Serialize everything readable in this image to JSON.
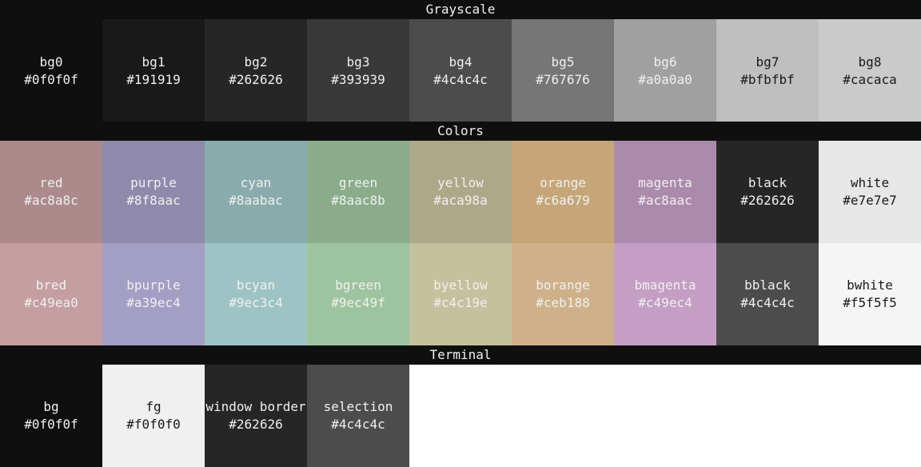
{
  "sections": {
    "grayscale": {
      "title": "Grayscale",
      "swatches": [
        {
          "name": "bg0",
          "hex": "#0f0f0f",
          "bg": "#0f0f0f",
          "fg": "#f0f0f0"
        },
        {
          "name": "bg1",
          "hex": "#191919",
          "bg": "#191919",
          "fg": "#f0f0f0"
        },
        {
          "name": "bg2",
          "hex": "#262626",
          "bg": "#262626",
          "fg": "#f0f0f0"
        },
        {
          "name": "bg3",
          "hex": "#393939",
          "bg": "#393939",
          "fg": "#f0f0f0"
        },
        {
          "name": "bg4",
          "hex": "#4c4c4c",
          "bg": "#4c4c4c",
          "fg": "#f0f0f0"
        },
        {
          "name": "bg5",
          "hex": "#767676",
          "bg": "#767676",
          "fg": "#f0f0f0"
        },
        {
          "name": "bg6",
          "hex": "#a0a0a0",
          "bg": "#a0a0a0",
          "fg": "#f0f0f0"
        },
        {
          "name": "bg7",
          "hex": "#bfbfbf",
          "bg": "#bfbfbf",
          "fg": "#191919"
        },
        {
          "name": "bg8",
          "hex": "#cacaca",
          "bg": "#cacaca",
          "fg": "#191919"
        }
      ]
    },
    "colors": {
      "title": "Colors",
      "normal": [
        {
          "name": "red",
          "hex": "#ac8a8c",
          "bg": "#ac8a8c",
          "fg": "#f0f0f0"
        },
        {
          "name": "purple",
          "hex": "#8f8aac",
          "bg": "#8f8aac",
          "fg": "#f0f0f0"
        },
        {
          "name": "cyan",
          "hex": "#8aabac",
          "bg": "#8aabac",
          "fg": "#f0f0f0"
        },
        {
          "name": "green",
          "hex": "#8aac8b",
          "bg": "#8aac8b",
          "fg": "#f0f0f0"
        },
        {
          "name": "yellow",
          "hex": "#aca98a",
          "bg": "#aca98a",
          "fg": "#f0f0f0"
        },
        {
          "name": "orange",
          "hex": "#c6a679",
          "bg": "#c6a679",
          "fg": "#f0f0f0"
        },
        {
          "name": "magenta",
          "hex": "#ac8aac",
          "bg": "#ac8aac",
          "fg": "#f0f0f0"
        },
        {
          "name": "black",
          "hex": "#262626",
          "bg": "#262626",
          "fg": "#f0f0f0"
        },
        {
          "name": "white",
          "hex": "#e7e7e7",
          "bg": "#e7e7e7",
          "fg": "#191919"
        }
      ],
      "bright": [
        {
          "name": "bred",
          "hex": "#c49ea0",
          "bg": "#c49ea0",
          "fg": "#f0f0f0"
        },
        {
          "name": "bpurple",
          "hex": "#a39ec4",
          "bg": "#a39ec4",
          "fg": "#f0f0f0"
        },
        {
          "name": "bcyan",
          "hex": "#9ec3c4",
          "bg": "#9ec3c4",
          "fg": "#f0f0f0"
        },
        {
          "name": "bgreen",
          "hex": "#9ec49f",
          "bg": "#9ec49f",
          "fg": "#f0f0f0"
        },
        {
          "name": "byellow",
          "hex": "#c4c19e",
          "bg": "#c4c19e",
          "fg": "#f0f0f0"
        },
        {
          "name": "borange",
          "hex": "#ceb188",
          "bg": "#ceb188",
          "fg": "#f0f0f0"
        },
        {
          "name": "bmagenta",
          "hex": "#c49ec4",
          "bg": "#c49ec4",
          "fg": "#f0f0f0"
        },
        {
          "name": "bblack",
          "hex": "#4c4c4c",
          "bg": "#4c4c4c",
          "fg": "#f0f0f0"
        },
        {
          "name": "bwhite",
          "hex": "#f5f5f5",
          "bg": "#f5f5f5",
          "fg": "#191919"
        }
      ]
    },
    "terminal": {
      "title": "Terminal",
      "swatches": [
        {
          "name": "bg",
          "hex": "#0f0f0f",
          "bg": "#0f0f0f",
          "fg": "#f0f0f0"
        },
        {
          "name": "fg",
          "hex": "#f0f0f0",
          "bg": "#f0f0f0",
          "fg": "#191919"
        },
        {
          "name": "window border",
          "hex": "#262626",
          "bg": "#262626",
          "fg": "#f0f0f0"
        },
        {
          "name": "selection",
          "hex": "#4c4c4c",
          "bg": "#4c4c4c",
          "fg": "#f0f0f0"
        }
      ]
    }
  }
}
